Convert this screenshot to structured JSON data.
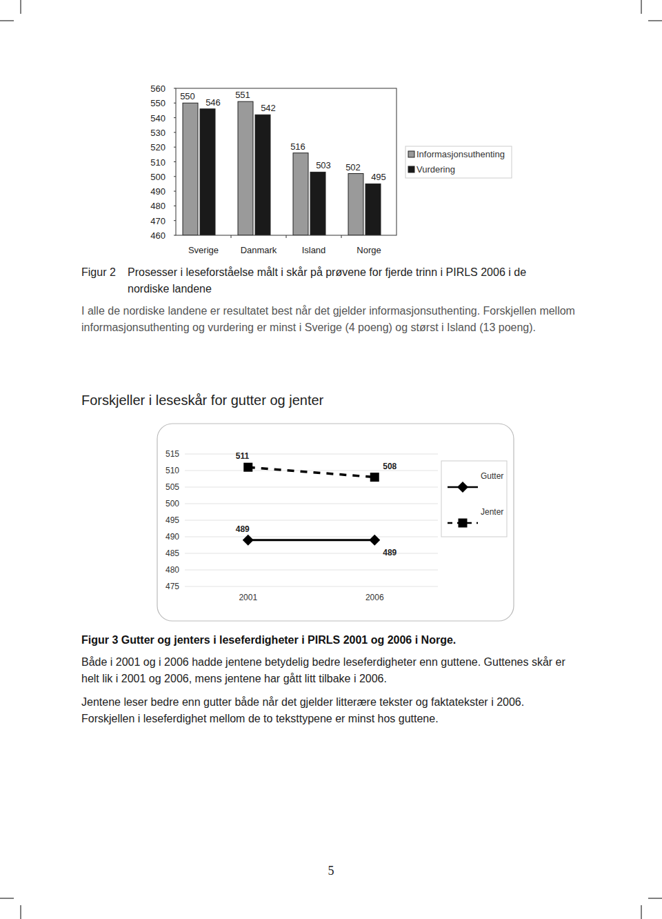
{
  "chart_data": [
    {
      "type": "bar",
      "categories": [
        "Sverige",
        "Danmark",
        "Island",
        "Norge"
      ],
      "series": [
        {
          "name": "Informasjonsuthenting",
          "color": "#9a9a9a",
          "values": [
            550,
            551,
            516,
            502
          ]
        },
        {
          "name": "Vurdering",
          "color": "#1a1a1a",
          "values": [
            546,
            542,
            503,
            495
          ]
        }
      ],
      "ylim": [
        460,
        560
      ],
      "yticks": [
        460,
        470,
        480,
        490,
        500,
        510,
        520,
        530,
        540,
        550,
        560
      ],
      "grid": false,
      "legend": "right",
      "data_labels": true
    },
    {
      "type": "line",
      "title": "Forskjeller i leseskår for gutter og jenter",
      "categories": [
        "2001",
        "2006"
      ],
      "series": [
        {
          "name": "Gutter",
          "color": "#000000",
          "marker": "diamond",
          "line_style": "solid",
          "values": [
            489,
            489
          ]
        },
        {
          "name": "Jenter",
          "color": "#000000",
          "marker": "square",
          "line_style": "dashed",
          "values": [
            511,
            508
          ]
        }
      ],
      "ylim": [
        475,
        515
      ],
      "yticks": [
        475,
        480,
        485,
        490,
        495,
        500,
        505,
        510,
        515
      ],
      "grid": true,
      "legend": "right",
      "data_labels": true
    }
  ],
  "page": {
    "figure2_label": "Figur 2",
    "figure2_caption": "Prosesser i leseforståelse målt i skår på prøvene for fjerde trinn i PIRLS 2006 i de nordiske landene",
    "figure2_text": "I alle de nordiske landene er resultatet best når det gjelder informasjonsuthenting. Forskjellen mellom informasjonsuthenting og vurdering er minst i Sverige (4 poeng) og størst i Island (13 poeng).",
    "figure3_caption": "Figur 3 Gutter og jenters i leseferdigheter i PIRLS 2001 og 2006 i Norge.",
    "paragraphs": [
      "Både i 2001 og i 2006 hadde jentene betydelig bedre leseferdigheter enn guttene. Guttenes skår er helt lik i 2001 og 2006, mens jentene har gått litt tilbake i 2006.",
      "Jentene leser bedre enn gutter både når det gjelder litterære tekster og faktatekster i 2006. Forskjellen i leseferdighet mellom de to teksttypene er minst hos guttene."
    ],
    "page_number": "5"
  }
}
